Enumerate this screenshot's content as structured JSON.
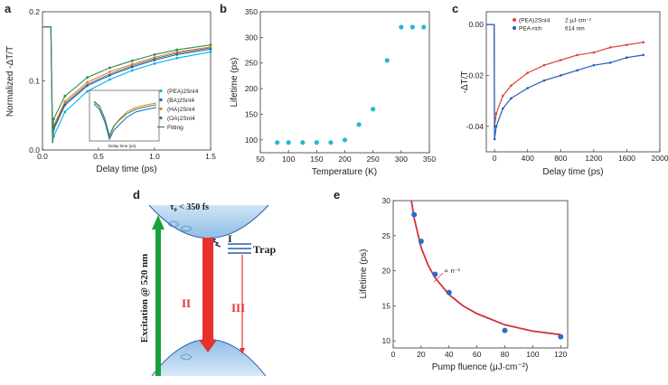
{
  "chart_data": [
    {
      "panel": "a",
      "type": "line",
      "xlabel": "Delay time (ps)",
      "ylabel": "Normalized -ΔT/T",
      "xlim": [
        0,
        1.5
      ],
      "ylim": [
        0,
        0.2
      ],
      "xticks": [
        "0.0",
        "0.5",
        "1.0",
        "1.5"
      ],
      "yticks": [
        "0.0",
        "0.1",
        "0.2"
      ],
      "series": [
        {
          "name": "(PEA)2SnI4",
          "color": "#00b4d8",
          "x": [
            0.1,
            0.2,
            0.4,
            0.6,
            0.8,
            1.0,
            1.2,
            1.5
          ],
          "y": [
            0.02,
            0.055,
            0.085,
            0.102,
            0.115,
            0.125,
            0.133,
            0.142
          ]
        },
        {
          "name": "(BA)2SnI4",
          "color": "#1a66c8",
          "x": [
            0.1,
            0.2,
            0.4,
            0.6,
            0.8,
            1.0,
            1.2,
            1.5
          ],
          "y": [
            0.03,
            0.065,
            0.093,
            0.108,
            0.12,
            0.13,
            0.138,
            0.146
          ]
        },
        {
          "name": "(HA)2SnI4",
          "color": "#e67e22",
          "x": [
            0.1,
            0.2,
            0.4,
            0.6,
            0.8,
            1.0,
            1.2,
            1.5
          ],
          "y": [
            0.035,
            0.07,
            0.098,
            0.113,
            0.124,
            0.134,
            0.142,
            0.149
          ]
        },
        {
          "name": "(OA)2SnI4",
          "color": "#2e8b57",
          "x": [
            0.1,
            0.2,
            0.4,
            0.6,
            0.8,
            1.0,
            1.2,
            1.5
          ],
          "y": [
            0.045,
            0.078,
            0.105,
            0.119,
            0.129,
            0.138,
            0.145,
            0.152
          ]
        }
      ],
      "legend": [
        "(PEA)2SnI4",
        "(BA)2SnI4",
        "(HA)2SnI4",
        "(OA)2SnI4",
        "Fitting"
      ],
      "inset_xlabel": "Delay time (ps)"
    },
    {
      "panel": "b",
      "type": "scatter",
      "xlabel": "Temperature (K)",
      "ylabel": "Lifetime (ps)",
      "xlim": [
        50,
        350
      ],
      "ylim": [
        75,
        350
      ],
      "xticks": [
        "50",
        "100",
        "150",
        "200",
        "250",
        "300",
        "350"
      ],
      "yticks": [
        "100",
        "150",
        "200",
        "250",
        "300",
        "350"
      ],
      "color": "#26b8d4",
      "x": [
        80,
        100,
        125,
        150,
        175,
        200,
        225,
        250,
        275,
        300,
        320,
        340
      ],
      "y": [
        95,
        95,
        95,
        95,
        95,
        100,
        130,
        160,
        255,
        320,
        320,
        320
      ]
    },
    {
      "panel": "c",
      "type": "line",
      "xlabel": "Delay time (ps)",
      "ylabel": "-ΔT/T",
      "xlim": [
        -100,
        2000
      ],
      "ylim": [
        -0.05,
        0.005
      ],
      "xticks": [
        "0",
        "400",
        "800",
        "1200",
        "1600",
        "2000"
      ],
      "yticks": [
        "0.00",
        "-0.02",
        "-0.04"
      ],
      "series": [
        {
          "name": "(PEA)2SnI4",
          "label": "2 μJ·cm⁻²",
          "color": "#d9463b",
          "x": [
            0,
            20,
            100,
            200,
            400,
            600,
            800,
            1000,
            1200,
            1400,
            1600,
            1800
          ],
          "y": [
            -0.04,
            -0.035,
            -0.028,
            -0.024,
            -0.019,
            -0.016,
            -0.014,
            -0.012,
            -0.011,
            -0.009,
            -0.008,
            -0.007
          ]
        },
        {
          "name": "PEA-rich",
          "label": "614 nm",
          "color": "#1f5fb8",
          "x": [
            0,
            20,
            100,
            200,
            400,
            600,
            800,
            1000,
            1200,
            1400,
            1600,
            1800
          ],
          "y": [
            -0.045,
            -0.04,
            -0.033,
            -0.029,
            -0.025,
            -0.022,
            -0.02,
            -0.018,
            -0.016,
            -0.015,
            -0.013,
            -0.012
          ]
        }
      ]
    },
    {
      "panel": "e",
      "type": "scatter",
      "xlabel": "Pump fluence (μJ·cm⁻²)",
      "ylabel": "Lifetime (ps)",
      "xlim": [
        0,
        125
      ],
      "ylim": [
        9,
        30
      ],
      "xticks": [
        "0",
        "20",
        "40",
        "60",
        "80",
        "100",
        "120"
      ],
      "yticks": [
        "10",
        "15",
        "20",
        "25",
        "30"
      ],
      "annotation": "∝ n⁻¹",
      "color": "#2a6dc9",
      "fit_color": "#d0323a",
      "x": [
        15,
        20,
        30,
        40,
        80,
        120
      ],
      "y": [
        28,
        24.2,
        19.5,
        16.9,
        11.5,
        10.6
      ],
      "fit_x": [
        13,
        15,
        20,
        25,
        30,
        40,
        50,
        60,
        80,
        100,
        120
      ],
      "fit_y": [
        30,
        27.5,
        23.3,
        20.8,
        19.0,
        16.6,
        15.0,
        13.9,
        12.3,
        11.4,
        10.9
      ]
    }
  ],
  "panel_labels": {
    "a": "a",
    "b": "b",
    "c": "c",
    "d": "d",
    "e": "e"
  },
  "diagram_d": {
    "tau": "τ₀ < 350 fs",
    "excitation": "Excitation @ 520 nm",
    "trap": "Trap",
    "i": "I",
    "ii": "II",
    "iii": "III",
    "colors": {
      "red": "#e8312f",
      "green": "#1aa23a",
      "blue": "#9ec8ea"
    }
  }
}
